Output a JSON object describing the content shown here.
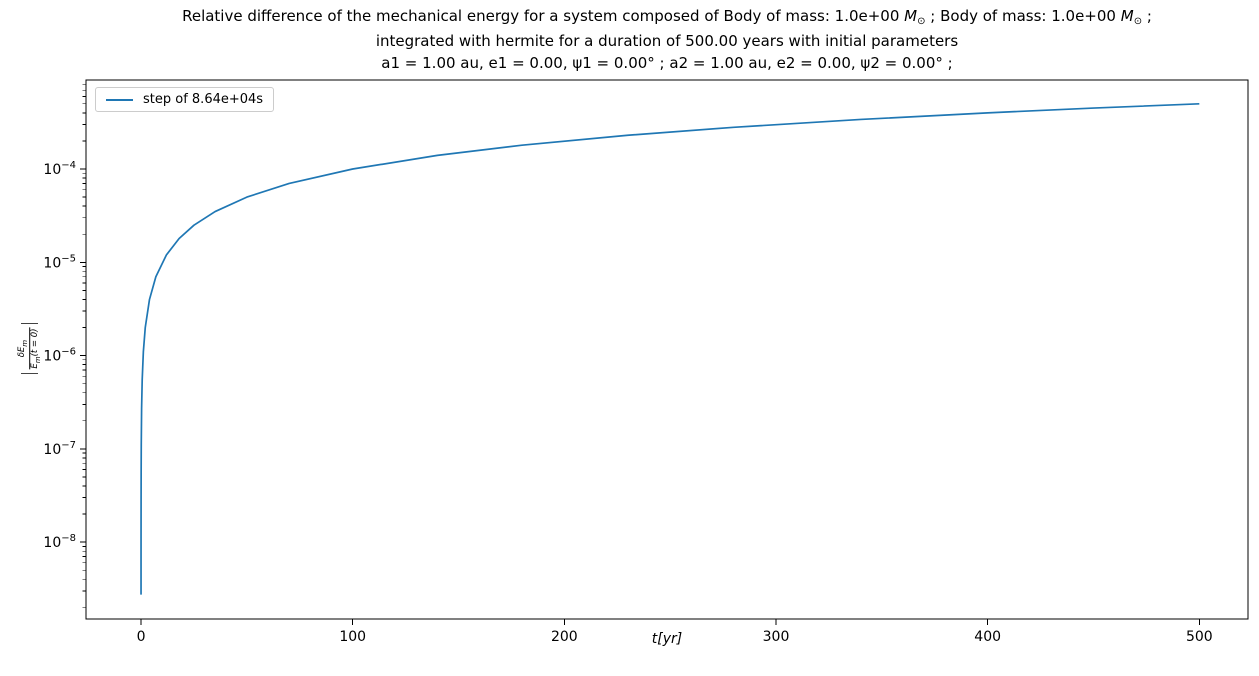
{
  "figure": {
    "title": {
      "line1_prefix": "Relative difference of the mechanical energy for a system composed of Body of mass: 1.0e+00 ",
      "mass_symbol": "M",
      "sun_symbol": "⊙",
      "line1_mid": " ; Body of mass: 1.0e+00 ",
      "line1_suffix": " ;",
      "line2": "integrated with hermite for a duration of 500.00 years with initial parameters",
      "line3": "a1 = 1.00 au, e1 = 0.00, ψ1 = 0.00° ; a2 = 1.00 au, e2 = 0.00, ψ2 = 0.00° ;"
    },
    "legend": {
      "label": "step of 8.64e+04s",
      "line_color": "#1f77b4"
    },
    "ylabel_parts": {
      "bar": "|",
      "num_main": "δE",
      "num_sub": "m",
      "den_main": "E",
      "den_sub": "m",
      "den_rest": "(t = 0)"
    }
  },
  "chart_data": {
    "type": "line",
    "title": "Relative difference of the mechanical energy for a system composed of Body of mass: 1.0e+00 M⊙ ; Body of mass: 1.0e+00 M⊙ ; integrated with hermite for a duration of 500.00 years with initial parameters a1 = 1.00 au, e1 = 0.00, ψ1 = 0.00° ; a2 = 1.00 au, e2 = 0.00, ψ2 = 0.00° ;",
    "xlabel": "t[yr]",
    "ylabel": "|δE_m / E_m(t=0)|",
    "x_scale": "linear",
    "y_scale": "log",
    "grid": false,
    "legend_position": "upper left",
    "xlim": [
      -26,
      523
    ],
    "ylim": [
      1.5e-09,
      0.0009
    ],
    "x_ticks": [
      0,
      100,
      200,
      300,
      400,
      500
    ],
    "y_tick_exponents": [
      -8,
      -7,
      -6,
      -5,
      -4
    ],
    "series": [
      {
        "name": "step of 8.64e+04s",
        "color": "#1f77b4",
        "points": [
          [
            0.00274,
            2.74e-09
          ],
          [
            0.0055,
            5.5e-09
          ],
          [
            0.011,
            1.1e-08
          ],
          [
            0.027,
            2.7e-08
          ],
          [
            0.055,
            5.5e-08
          ],
          [
            0.11,
            1.1e-07
          ],
          [
            0.27,
            2.7e-07
          ],
          [
            0.55,
            5.5e-07
          ],
          [
            1.1,
            1.1e-06
          ],
          [
            2,
            2e-06
          ],
          [
            4,
            4e-06
          ],
          [
            7,
            7e-06
          ],
          [
            12,
            1.2e-05
          ],
          [
            18,
            1.8e-05
          ],
          [
            25,
            2.5e-05
          ],
          [
            35,
            3.5e-05
          ],
          [
            50,
            5e-05
          ],
          [
            70,
            7e-05
          ],
          [
            100,
            0.0001
          ],
          [
            140,
            0.00014
          ],
          [
            180,
            0.00018
          ],
          [
            230,
            0.00023
          ],
          [
            280,
            0.00028
          ],
          [
            340,
            0.00034
          ],
          [
            400,
            0.0004
          ],
          [
            450,
            0.00045
          ],
          [
            500,
            0.0005
          ]
        ]
      }
    ]
  }
}
